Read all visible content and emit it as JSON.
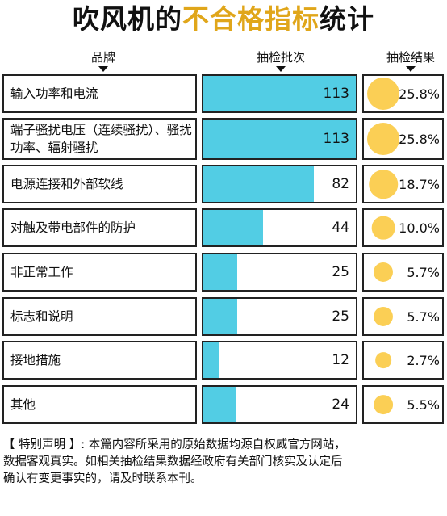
{
  "title": {
    "part1": "吹风机的",
    "highlight": "不合格指标",
    "part2": "统计"
  },
  "headers": {
    "item": "品牌",
    "count": "抽检批次",
    "result": "抽检结果"
  },
  "colors": {
    "bar": "#52cde4",
    "dot": "#fbcf55",
    "highlight": "#e0a61a"
  },
  "chart_data": {
    "type": "bar",
    "categories": [
      "输入功率和电流",
      "端子骚扰电压（连续骚扰）、骚扰功率、辐射骚扰",
      "电源连接和外部软线",
      "对触及带电部件的防护",
      "非正常工作",
      "标志和说明",
      "接地措施",
      "其他"
    ],
    "values": [
      113,
      113,
      82,
      44,
      25,
      25,
      12,
      24
    ],
    "rates": [
      "25.8%",
      "25.8%",
      "18.7%",
      "10.0%",
      "5.7%",
      "5.7%",
      "2.7%",
      "5.5%"
    ],
    "rate_values": [
      25.8,
      25.8,
      18.7,
      10.0,
      5.7,
      5.7,
      2.7,
      5.5
    ],
    "xlim": [
      0,
      113
    ]
  },
  "note": {
    "line1": "【 特别声明 】: 本篇内容所采用的原始数据均源自权威官方网站，",
    "line2": "数据客观真实。如相关抽检结果数据经政府有关部门核实及认定后",
    "line3": "确认有变更事实的，请及时联系本刊。"
  }
}
